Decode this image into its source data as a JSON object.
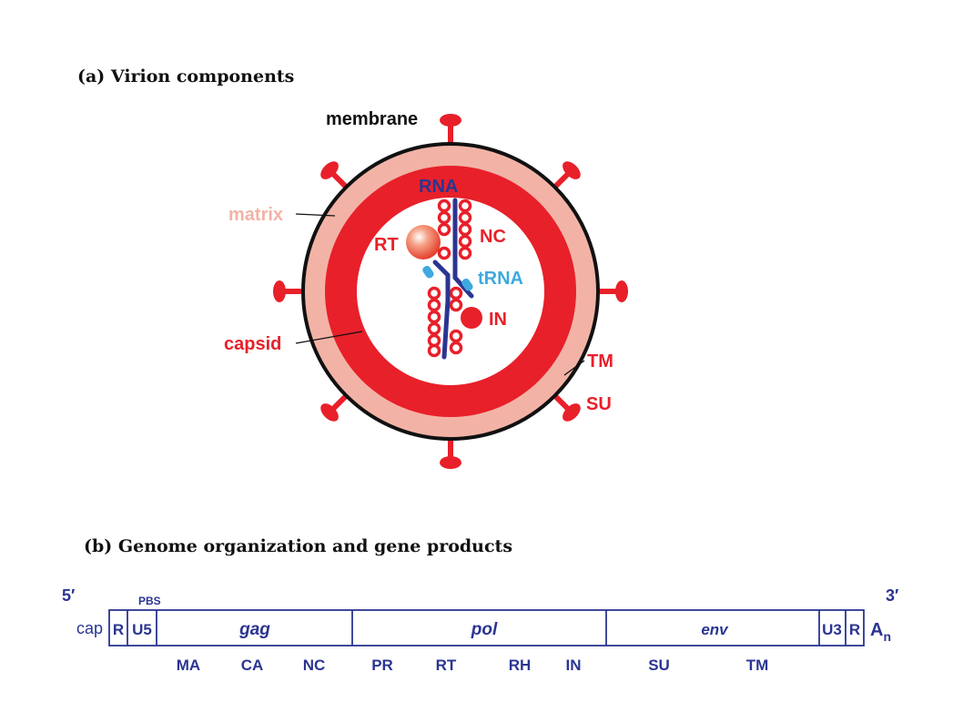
{
  "panel_a": {
    "title": "(a) Virion components",
    "labels": {
      "membrane": "membrane",
      "matrix": "matrix",
      "capsid": "capsid",
      "rna": "RNA",
      "rt": "RT",
      "nc": "NC",
      "trna": "tRNA",
      "in": "IN",
      "tm": "TM",
      "su": "SU"
    }
  },
  "panel_b": {
    "title": "(b) Genome organization and gene products",
    "five_prime": "5′",
    "three_prime": "3′",
    "cap": "cap",
    "pbs": "PBS",
    "polya_base": "A",
    "polya_sub": "n",
    "segments": {
      "r_left": "R",
      "u5": "U5",
      "gag": "gag",
      "pol": "pol",
      "env": "env",
      "u3": "U3",
      "r_right": "R"
    },
    "products": [
      "MA",
      "CA",
      "NC",
      "PR",
      "RT",
      "RH",
      "IN",
      "SU",
      "TM"
    ]
  },
  "colors": {
    "membrane": "#111111",
    "matrix": "#f2b3a6",
    "capsid": "#e8202a",
    "rna": "#2b3591",
    "trna": "#3fa9e0",
    "genome": "#2b3591"
  }
}
